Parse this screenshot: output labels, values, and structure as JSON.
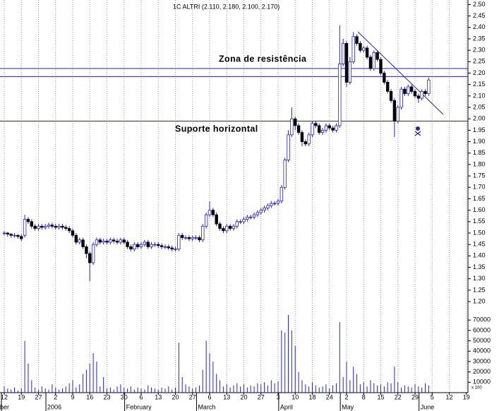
{
  "chart_data": {
    "type": "candlestick",
    "title": "1C ALTRI (2.110, 2.180, 2.100, 2.170)",
    "annotations": [
      "Zona de resistência",
      "Suporte horizontal"
    ],
    "categories": [
      "12",
      null,
      null,
      null,
      null,
      "19",
      null,
      null,
      null,
      null,
      "27",
      null,
      null,
      null,
      null,
      "2",
      null,
      null,
      null,
      null,
      "9",
      null,
      null,
      null,
      null,
      "16",
      null,
      null,
      null,
      null,
      "23",
      null,
      null,
      null,
      null,
      "30",
      null,
      null,
      null,
      null,
      "6",
      null,
      null,
      null,
      null,
      "13",
      null,
      null,
      null,
      null,
      "20",
      null,
      null,
      null,
      null,
      "27",
      null,
      null,
      null,
      null,
      "6",
      null,
      null,
      null,
      null,
      "13",
      null,
      null,
      null,
      null,
      "20",
      null,
      null,
      null,
      null,
      "27",
      null,
      null,
      null,
      null,
      "3",
      null,
      null,
      null,
      null,
      "10",
      null,
      null,
      null,
      null,
      "18",
      null,
      null,
      null,
      null,
      "24",
      null,
      null,
      null,
      null,
      "2",
      null,
      null,
      null,
      null,
      "8",
      null,
      null,
      null,
      null,
      "15",
      null,
      null,
      null,
      null,
      "22",
      null,
      null,
      null,
      null,
      "29",
      null,
      null,
      null,
      null,
      "5",
      null,
      null,
      null,
      null,
      "12",
      null,
      null,
      null,
      null,
      "19"
    ],
    "months": [
      "ber",
      null,
      null,
      null,
      null,
      null,
      null,
      null,
      null,
      null,
      null,
      null,
      null,
      "2006",
      null,
      null,
      null,
      null,
      null,
      null,
      null,
      null,
      null,
      null,
      null,
      null,
      null,
      null,
      null,
      null,
      null,
      null,
      null,
      null,
      null,
      null,
      "February",
      null,
      null,
      null,
      null,
      null,
      null,
      null,
      null,
      null,
      null,
      null,
      null,
      null,
      null,
      null,
      null,
      null,
      null,
      null,
      null,
      "March",
      null,
      null,
      null,
      null,
      null,
      null,
      null,
      null,
      null,
      null,
      null,
      null,
      null,
      null,
      null,
      null,
      null,
      null,
      null,
      null,
      null,
      null,
      null,
      "April",
      null,
      null,
      null,
      null,
      null,
      null,
      null,
      null,
      null,
      null,
      null,
      null,
      null,
      null,
      null,
      null,
      null,
      "May",
      null,
      null,
      null,
      null,
      null,
      null,
      null,
      null,
      null,
      null,
      null,
      null,
      null,
      null,
      null,
      null,
      null,
      null,
      null,
      null,
      null,
      null,
      "June",
      null,
      null,
      null,
      null,
      null,
      null,
      null,
      null,
      null,
      null,
      null,
      null,
      null
    ],
    "open": [
      1.5,
      1.5,
      1.495,
      1.49,
      1.49,
      1.485,
      1.49,
      1.56,
      1.55,
      1.53,
      1.52,
      1.53,
      1.525,
      1.53,
      1.535,
      1.53,
      1.525,
      1.53,
      1.525,
      1.52,
      1.51,
      1.49,
      1.46,
      1.47,
      1.44,
      1.41,
      1.37,
      1.45,
      1.47,
      1.46,
      1.465,
      1.46,
      1.47,
      1.465,
      1.46,
      1.47,
      1.46,
      1.44,
      1.43,
      1.45,
      1.44,
      1.45,
      1.46,
      1.44,
      1.45,
      1.45,
      1.445,
      1.44,
      1.44,
      1.435,
      1.43,
      1.43,
      1.49,
      1.48,
      1.48,
      1.475,
      1.48,
      1.48,
      1.47,
      1.53,
      1.58,
      1.6,
      1.58,
      1.54,
      1.52,
      1.51,
      1.53,
      1.52,
      1.53,
      1.55,
      1.55,
      1.56,
      1.57,
      1.57,
      1.58,
      1.59,
      1.6,
      1.61,
      1.62,
      1.63,
      1.63,
      1.64,
      1.7,
      1.82,
      1.93,
      2.0,
      1.97,
      1.94,
      1.9,
      1.89,
      1.93,
      1.98,
      1.97,
      1.94,
      1.95,
      1.97,
      1.96,
      1.95,
      1.97,
      2.24,
      2.33,
      2.16,
      2.25,
      2.36,
      2.33,
      2.3,
      2.31,
      2.27,
      2.22,
      2.29,
      2.26,
      2.2,
      2.16,
      2.12,
      2.08,
      1.99,
      2.05,
      2.13,
      2.11,
      2.14,
      2.12,
      2.1,
      2.09,
      2.12,
      2.11,
      null,
      null,
      null,
      null,
      null,
      null,
      null,
      null,
      null,
      null,
      null
    ],
    "high": [
      1.51,
      1.505,
      1.5,
      1.5,
      1.495,
      1.495,
      1.58,
      1.57,
      1.56,
      1.54,
      1.54,
      1.54,
      1.54,
      1.545,
      1.545,
      1.54,
      1.54,
      1.54,
      1.535,
      1.53,
      1.52,
      1.5,
      1.48,
      1.48,
      1.45,
      1.42,
      1.46,
      1.48,
      1.48,
      1.475,
      1.475,
      1.48,
      1.48,
      1.475,
      1.48,
      1.48,
      1.47,
      1.45,
      1.46,
      1.46,
      1.46,
      1.47,
      1.47,
      1.46,
      1.46,
      1.46,
      1.455,
      1.45,
      1.45,
      1.445,
      1.44,
      1.5,
      1.5,
      1.49,
      1.49,
      1.49,
      1.49,
      1.49,
      1.54,
      1.59,
      1.64,
      1.61,
      1.59,
      1.55,
      1.53,
      1.54,
      1.54,
      1.54,
      1.56,
      1.56,
      1.57,
      1.58,
      1.58,
      1.59,
      1.6,
      1.61,
      1.62,
      1.63,
      1.64,
      1.64,
      1.65,
      1.71,
      1.83,
      1.95,
      2.05,
      2.01,
      1.98,
      1.95,
      1.91,
      1.94,
      1.99,
      1.99,
      1.98,
      1.96,
      1.98,
      1.98,
      1.97,
      1.98,
      2.41,
      2.35,
      2.34,
      2.27,
      2.38,
      2.37,
      2.34,
      2.32,
      2.32,
      2.28,
      2.3,
      2.3,
      2.27,
      2.21,
      2.17,
      2.13,
      2.09,
      2.06,
      2.14,
      2.14,
      2.15,
      2.15,
      2.13,
      2.11,
      2.13,
      2.13,
      2.18,
      null,
      null,
      null,
      null,
      null,
      null,
      null,
      null,
      null,
      null,
      null
    ],
    "low": [
      1.49,
      1.485,
      1.48,
      1.48,
      1.475,
      1.465,
      1.48,
      1.54,
      1.52,
      1.51,
      1.51,
      1.515,
      1.515,
      1.52,
      1.52,
      1.515,
      1.515,
      1.515,
      1.51,
      1.5,
      1.48,
      1.45,
      1.45,
      1.43,
      1.39,
      1.29,
      1.36,
      1.44,
      1.45,
      1.45,
      1.45,
      1.45,
      1.455,
      1.45,
      1.45,
      1.45,
      1.43,
      1.42,
      1.42,
      1.43,
      1.43,
      1.44,
      1.43,
      1.43,
      1.44,
      1.435,
      1.43,
      1.43,
      1.425,
      1.42,
      1.42,
      1.42,
      1.47,
      1.47,
      1.465,
      1.465,
      1.47,
      1.46,
      1.46,
      1.52,
      1.57,
      1.57,
      1.53,
      1.51,
      1.5,
      1.5,
      1.51,
      1.51,
      1.52,
      1.54,
      1.54,
      1.55,
      1.56,
      1.56,
      1.57,
      1.58,
      1.59,
      1.6,
      1.61,
      1.62,
      1.62,
      1.63,
      1.69,
      1.81,
      1.92,
      1.95,
      1.93,
      1.88,
      1.88,
      1.88,
      1.92,
      1.96,
      1.93,
      1.93,
      1.94,
      1.95,
      1.94,
      1.94,
      1.96,
      2.23,
      2.14,
      2.15,
      2.24,
      2.32,
      2.29,
      2.29,
      2.26,
      2.21,
      2.21,
      2.25,
      2.19,
      2.15,
      2.11,
      2.07,
      1.92,
      1.98,
      2.04,
      2.1,
      2.1,
      2.11,
      2.09,
      2.07,
      2.08,
      2.1,
      2.1,
      null,
      null,
      null,
      null,
      null,
      null,
      null,
      null,
      null,
      null,
      null
    ],
    "close": [
      1.5,
      1.495,
      1.49,
      1.49,
      1.485,
      1.475,
      1.56,
      1.55,
      1.53,
      1.52,
      1.53,
      1.525,
      1.53,
      1.535,
      1.53,
      1.525,
      1.53,
      1.525,
      1.52,
      1.51,
      1.49,
      1.46,
      1.47,
      1.44,
      1.41,
      1.37,
      1.45,
      1.47,
      1.46,
      1.465,
      1.46,
      1.47,
      1.465,
      1.46,
      1.47,
      1.46,
      1.44,
      1.43,
      1.45,
      1.44,
      1.45,
      1.46,
      1.44,
      1.45,
      1.45,
      1.445,
      1.44,
      1.44,
      1.435,
      1.43,
      1.43,
      1.49,
      1.48,
      1.48,
      1.475,
      1.48,
      1.48,
      1.47,
      1.53,
      1.58,
      1.6,
      1.58,
      1.54,
      1.52,
      1.51,
      1.53,
      1.52,
      1.53,
      1.55,
      1.55,
      1.56,
      1.57,
      1.57,
      1.58,
      1.59,
      1.6,
      1.61,
      1.62,
      1.63,
      1.63,
      1.64,
      1.7,
      1.82,
      1.93,
      2.0,
      1.97,
      1.94,
      1.9,
      1.89,
      1.93,
      1.98,
      1.97,
      1.94,
      1.95,
      1.97,
      1.96,
      1.95,
      1.97,
      2.24,
      2.33,
      2.16,
      2.25,
      2.36,
      2.33,
      2.3,
      2.31,
      2.27,
      2.22,
      2.29,
      2.26,
      2.2,
      2.16,
      2.12,
      2.08,
      1.99,
      2.05,
      2.13,
      2.11,
      2.14,
      2.12,
      2.1,
      2.09,
      2.12,
      2.11,
      2.17,
      null,
      null,
      null,
      null,
      null,
      null,
      null,
      null,
      null,
      null,
      null
    ],
    "volume": [
      6000,
      4000,
      3000,
      5000,
      2000,
      4000,
      50000,
      28000,
      12000,
      5000,
      3000,
      6000,
      4000,
      3000,
      8000,
      5000,
      3000,
      4000,
      6000,
      9000,
      12000,
      5000,
      8000,
      18000,
      22000,
      28000,
      38000,
      30000,
      6000,
      15000,
      4000,
      5000,
      3000,
      6000,
      8000,
      5000,
      4000,
      6000,
      3000,
      5000,
      4000,
      3000,
      7000,
      5000,
      4000,
      3000,
      5000,
      4000,
      6000,
      3000,
      5000,
      48000,
      15000,
      8000,
      6000,
      4000,
      5000,
      7000,
      22000,
      50000,
      38000,
      30000,
      18000,
      12000,
      6000,
      8000,
      5000,
      7000,
      9000,
      6000,
      8000,
      5000,
      7000,
      6000,
      9000,
      8000,
      10000,
      7000,
      12000,
      9000,
      11000,
      60000,
      58000,
      75000,
      60000,
      45000,
      20000,
      12000,
      8000,
      6000,
      10000,
      7000,
      5000,
      6000,
      8000,
      4000,
      7000,
      9000,
      68000,
      15000,
      30000,
      12000,
      25000,
      18000,
      8000,
      10000,
      6000,
      12000,
      9000,
      7000,
      8000,
      6000,
      10000,
      9000,
      25000,
      10000,
      5000,
      7000,
      6000,
      5000,
      8000,
      6000,
      5000,
      9000,
      7000,
      null,
      null,
      null,
      null,
      null,
      null,
      null,
      null,
      null,
      null,
      null
    ],
    "ylim": [
      1.16,
      2.52
    ],
    "yticks": [
      {
        "value": 2.5,
        "label": "2.50"
      },
      2.45,
      {
        "value": 2.4,
        "label": "2.40"
      },
      2.35,
      {
        "value": 2.3,
        "label": "2.30"
      },
      2.25,
      {
        "value": 2.2,
        "label": "2.20"
      },
      2.15,
      {
        "value": 2.1,
        "label": "2.10"
      },
      2.05,
      {
        "value": 2.0,
        "label": "2.00"
      },
      1.95,
      {
        "value": 1.9,
        "label": "1.90"
      },
      1.85,
      {
        "value": 1.8,
        "label": "1.80"
      },
      1.75,
      {
        "value": 1.7,
        "label": "1.70"
      },
      1.65,
      {
        "value": 1.6,
        "label": "1.60"
      },
      1.55,
      {
        "value": 1.5,
        "label": "1.50"
      },
      1.45,
      {
        "value": 1.4,
        "label": "1.40"
      },
      1.35,
      {
        "value": 1.3,
        "label": "1.30"
      },
      1.25,
      {
        "value": 1.2,
        "label": "1.20"
      }
    ],
    "volume_ylim": [
      0,
      79000
    ],
    "volume_ticks": [
      70000,
      60000,
      50000,
      40000,
      30000,
      20000,
      10000
    ],
    "volume_unit": "x 100",
    "reference_lines": [
      2.22,
      2.185,
      1.99
    ],
    "grid": true,
    "colors": {
      "up_fill": "#ffffff",
      "up_stroke": "#2424c8",
      "down": "#000000",
      "wick": "#2424c8",
      "volume": "#2424c8",
      "lines": "#2222a8",
      "text": "#1a1aa8"
    }
  }
}
